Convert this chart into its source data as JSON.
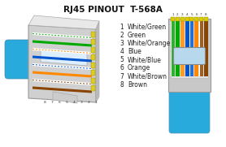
{
  "title": "RJ45 PINOUT  T-568A",
  "title_fontsize": 7.5,
  "title_color": "#111111",
  "background_color": "#ffffff",
  "pins": [
    {
      "num": 1,
      "label": "White/Green",
      "base": "#ffffff",
      "stripe": "#00aa00"
    },
    {
      "num": 2,
      "label": "Green",
      "base": "#00aa00",
      "stripe": null
    },
    {
      "num": 3,
      "label": "White/Orange",
      "base": "#ffffff",
      "stripe": "#ff8800"
    },
    {
      "num": 4,
      "label": "Blue",
      "base": "#0055cc",
      "stripe": null
    },
    {
      "num": 5,
      "label": "White/Blue",
      "base": "#ffffff",
      "stripe": "#0055cc"
    },
    {
      "num": 6,
      "label": "Orange",
      "base": "#ff8800",
      "stripe": null
    },
    {
      "num": 7,
      "label": "White/Brown",
      "base": "#ffffff",
      "stripe": "#884400"
    },
    {
      "num": 8,
      "label": "Brown",
      "base": "#884400",
      "stripe": null
    }
  ],
  "cable_color": "#29aadd",
  "right_wire_order": [
    {
      "base": "#ffffff",
      "stripe": "#00aa00"
    },
    {
      "base": "#00aa00",
      "stripe": null
    },
    {
      "base": "#ffffff",
      "stripe": "#ff8800"
    },
    {
      "base": "#0055cc",
      "stripe": null
    },
    {
      "base": "#ffffff",
      "stripe": "#0055cc"
    },
    {
      "base": "#ff8800",
      "stripe": null
    },
    {
      "base": "#ffffff",
      "stripe": "#884400"
    },
    {
      "base": "#884400",
      "stripe": null
    }
  ],
  "left_wire_order": [
    {
      "base": "#884400",
      "stripe": null
    },
    {
      "base": "#ffffff",
      "stripe": "#884400"
    },
    {
      "base": "#ff8800",
      "stripe": null
    },
    {
      "base": "#ffffff",
      "stripe": "#0055cc"
    },
    {
      "base": "#0055cc",
      "stripe": null
    },
    {
      "base": "#ffffff",
      "stripe": "#ff8800"
    },
    {
      "base": "#00aa00",
      "stripe": null
    },
    {
      "base": "#ffffff",
      "stripe": "#00aa00"
    }
  ]
}
